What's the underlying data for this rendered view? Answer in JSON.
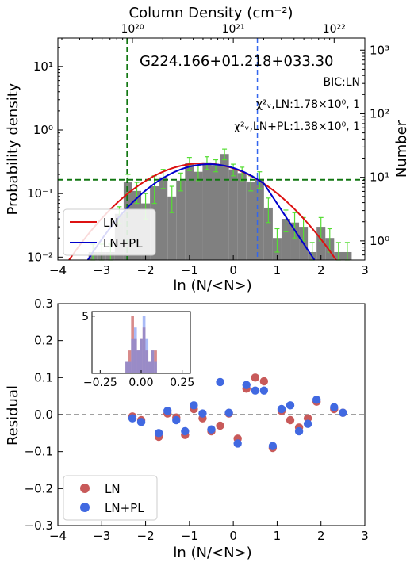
{
  "chart_data": [
    {
      "type": "histogram",
      "title": "G224.166+01.218+033.30",
      "xlabel": "ln (N/<N>)",
      "ylabel": "Probability density",
      "y2label": "Number",
      "top_xlabel": "Column Density (cm⁻²)",
      "xlim": [
        -4,
        3
      ],
      "ylim": [
        0.009,
        28
      ],
      "yscale": "log",
      "y2lim": [
        0.5,
        1550
      ],
      "y2scale": "log",
      "x_ticks": [
        -4,
        -3,
        -2,
        -1,
        0,
        1,
        2,
        3
      ],
      "x_tick_labels": [
        "−4",
        "−3",
        "−2",
        "−1",
        "0",
        "1",
        "2",
        "3"
      ],
      "y_ticks": [
        0.01,
        0.1,
        1,
        10
      ],
      "y_tick_labels": [
        "10⁻²",
        "10⁻¹",
        "10⁰",
        "10¹"
      ],
      "y2_ticks": [
        1,
        10,
        100,
        1000
      ],
      "y2_tick_labels": [
        "10⁰",
        "10¹",
        "10²",
        "10³"
      ],
      "top_ticks_ln": [
        -2.3,
        0.0,
        2.3
      ],
      "top_tick_labels": [
        "10²⁰",
        "10²¹",
        "10²²"
      ],
      "bic_text": "BIC:LN",
      "chi_ln_label": "χ²ᵥ,LN:1.78×10⁰, 1",
      "chi_lnpl_label": "χ²ᵥ,LN+PL:1.38×10⁰, 1",
      "bin_width": 0.2,
      "bins": [
        {
          "x": -3.2,
          "y": 0.012,
          "err": 0.004
        },
        {
          "x": -3.0,
          "y": 0.012,
          "err": 0.004
        },
        {
          "x": -2.8,
          "y": 0.012,
          "err": 0.004
        },
        {
          "x": -2.6,
          "y": 0.048,
          "err": 0.014
        },
        {
          "x": -2.4,
          "y": 0.15,
          "err": 0.05
        },
        {
          "x": -2.2,
          "y": 0.11,
          "err": 0.04
        },
        {
          "x": -2.0,
          "y": 0.07,
          "err": 0.03
        },
        {
          "x": -1.8,
          "y": 0.13,
          "err": 0.06
        },
        {
          "x": -1.6,
          "y": 0.18,
          "err": 0.06
        },
        {
          "x": -1.4,
          "y": 0.09,
          "err": 0.04
        },
        {
          "x": -1.2,
          "y": 0.16,
          "err": 0.05
        },
        {
          "x": -1.0,
          "y": 0.3,
          "err": 0.07
        },
        {
          "x": -0.8,
          "y": 0.22,
          "err": 0.06
        },
        {
          "x": -0.6,
          "y": 0.31,
          "err": 0.07
        },
        {
          "x": -0.4,
          "y": 0.28,
          "err": 0.06
        },
        {
          "x": -0.2,
          "y": 0.42,
          "err": 0.08
        },
        {
          "x": 0.0,
          "y": 0.24,
          "err": 0.05
        },
        {
          "x": 0.2,
          "y": 0.21,
          "err": 0.05
        },
        {
          "x": 0.4,
          "y": 0.15,
          "err": 0.04
        },
        {
          "x": 0.6,
          "y": 0.17,
          "err": 0.05
        },
        {
          "x": 0.8,
          "y": 0.06,
          "err": 0.025
        },
        {
          "x": 1.0,
          "y": 0.02,
          "err": 0.008
        },
        {
          "x": 1.2,
          "y": 0.04,
          "err": 0.015
        },
        {
          "x": 1.4,
          "y": 0.035,
          "err": 0.015
        },
        {
          "x": 1.6,
          "y": 0.03,
          "err": 0.012
        },
        {
          "x": 1.8,
          "y": 0.012,
          "err": 0.005
        },
        {
          "x": 2.0,
          "y": 0.03,
          "err": 0.012
        },
        {
          "x": 2.2,
          "y": 0.02,
          "err": 0.008
        },
        {
          "x": 2.4,
          "y": 0.012,
          "err": 0.005
        },
        {
          "x": 2.6,
          "y": 0.012,
          "err": 0.005
        }
      ],
      "ln_fit": {
        "peak": 0.3,
        "mu": -0.7,
        "sigma": 1.15
      },
      "lnpl_fit": {
        "peak": 0.29,
        "mu": -0.55,
        "sigma": 1.05,
        "break_x": 0.7,
        "slope": -2.4
      },
      "vline_green_x": -2.42,
      "vline_blue_x": 0.55,
      "hline_green_y": 0.165,
      "series": [
        {
          "name": "LN",
          "color": "#dd1111"
        },
        {
          "name": "LN+PL",
          "color": "#0000cc"
        }
      ],
      "legend_position": "lower-left"
    },
    {
      "type": "scatter",
      "xlabel": "ln (N/<N>)",
      "ylabel": "Residual",
      "xlim": [
        -4,
        3
      ],
      "ylim": [
        -0.3,
        0.3
      ],
      "x_ticks": [
        -4,
        -3,
        -2,
        -1,
        0,
        1,
        2,
        3
      ],
      "x_tick_labels": [
        "−4",
        "−3",
        "−2",
        "−1",
        "0",
        "1",
        "2",
        "3"
      ],
      "y_ticks": [
        -0.3,
        -0.2,
        -0.1,
        0.0,
        0.1,
        0.2,
        0.3
      ],
      "y_tick_labels": [
        "−0.3",
        "−0.2",
        "−0.1",
        "0.0",
        "0.1",
        "0.2",
        "0.3"
      ],
      "zero_line": true,
      "legend_position": "lower-left",
      "series": [
        {
          "name": "LN",
          "color": "#c85a5a",
          "points": [
            [
              -2.3,
              -0.005
            ],
            [
              -2.1,
              -0.015
            ],
            [
              -1.7,
              -0.06
            ],
            [
              -1.5,
              0.003
            ],
            [
              -1.3,
              -0.008
            ],
            [
              -1.1,
              -0.055
            ],
            [
              -0.9,
              0.015
            ],
            [
              -0.7,
              -0.01
            ],
            [
              -0.5,
              -0.045
            ],
            [
              -0.3,
              -0.03
            ],
            [
              -0.1,
              0.003
            ],
            [
              0.1,
              -0.065
            ],
            [
              0.3,
              0.07
            ],
            [
              0.5,
              0.1
            ],
            [
              0.7,
              0.09
            ],
            [
              0.9,
              -0.09
            ],
            [
              1.1,
              0.01
            ],
            [
              1.3,
              -0.015
            ],
            [
              1.5,
              -0.035
            ],
            [
              1.7,
              -0.01
            ],
            [
              1.9,
              0.035
            ],
            [
              2.3,
              0.015
            ],
            [
              2.5,
              0.005
            ]
          ]
        },
        {
          "name": "LN+PL",
          "color": "#4169e1",
          "points": [
            [
              -2.3,
              -0.01
            ],
            [
              -2.1,
              -0.02
            ],
            [
              -1.7,
              -0.05
            ],
            [
              -1.5,
              0.01
            ],
            [
              -1.3,
              -0.015
            ],
            [
              -1.1,
              -0.045
            ],
            [
              -0.9,
              0.025
            ],
            [
              -0.7,
              0.003
            ],
            [
              -0.5,
              -0.04
            ],
            [
              -0.3,
              0.088
            ],
            [
              -0.1,
              0.005
            ],
            [
              0.1,
              -0.078
            ],
            [
              0.3,
              0.08
            ],
            [
              0.5,
              0.065
            ],
            [
              0.7,
              0.065
            ],
            [
              0.9,
              -0.085
            ],
            [
              1.1,
              0.015
            ],
            [
              1.3,
              0.025
            ],
            [
              1.5,
              -0.045
            ],
            [
              1.7,
              -0.025
            ],
            [
              1.9,
              0.04
            ],
            [
              2.3,
              0.02
            ],
            [
              2.5,
              0.005
            ]
          ]
        }
      ],
      "inset": {
        "type": "histogram",
        "xlim": [
          -0.3,
          0.3
        ],
        "ylim": [
          0,
          5.4
        ],
        "x_ticks": [
          -0.25,
          0.0,
          0.25
        ],
        "x_tick_labels": [
          "−0.25",
          "0.00",
          "0.25"
        ],
        "y_ticks": [
          5
        ],
        "y_tick_labels": [
          "5"
        ],
        "bin_width": 0.0175,
        "ln_hist": [
          {
            "x": -0.0875,
            "count": 1
          },
          {
            "x": -0.07,
            "count": 2
          },
          {
            "x": -0.0525,
            "count": 5
          },
          {
            "x": -0.035,
            "count": 3
          },
          {
            "x": -0.0175,
            "count": 2
          },
          {
            "x": 0.0,
            "count": 3
          },
          {
            "x": 0.0175,
            "count": 4
          },
          {
            "x": 0.035,
            "count": 2
          },
          {
            "x": 0.0525,
            "count": 1
          },
          {
            "x": 0.07,
            "count": 2
          },
          {
            "x": 0.0875,
            "count": 2
          }
        ],
        "lnpl_hist": [
          {
            "x": -0.0875,
            "count": 1
          },
          {
            "x": -0.07,
            "count": 1
          },
          {
            "x": -0.0525,
            "count": 3
          },
          {
            "x": -0.035,
            "count": 4
          },
          {
            "x": -0.0175,
            "count": 2
          },
          {
            "x": 0.0,
            "count": 3
          },
          {
            "x": 0.0175,
            "count": 5
          },
          {
            "x": 0.035,
            "count": 3
          },
          {
            "x": 0.0525,
            "count": 1
          },
          {
            "x": 0.07,
            "count": 2
          },
          {
            "x": 0.0875,
            "count": 1
          }
        ]
      }
    }
  ]
}
